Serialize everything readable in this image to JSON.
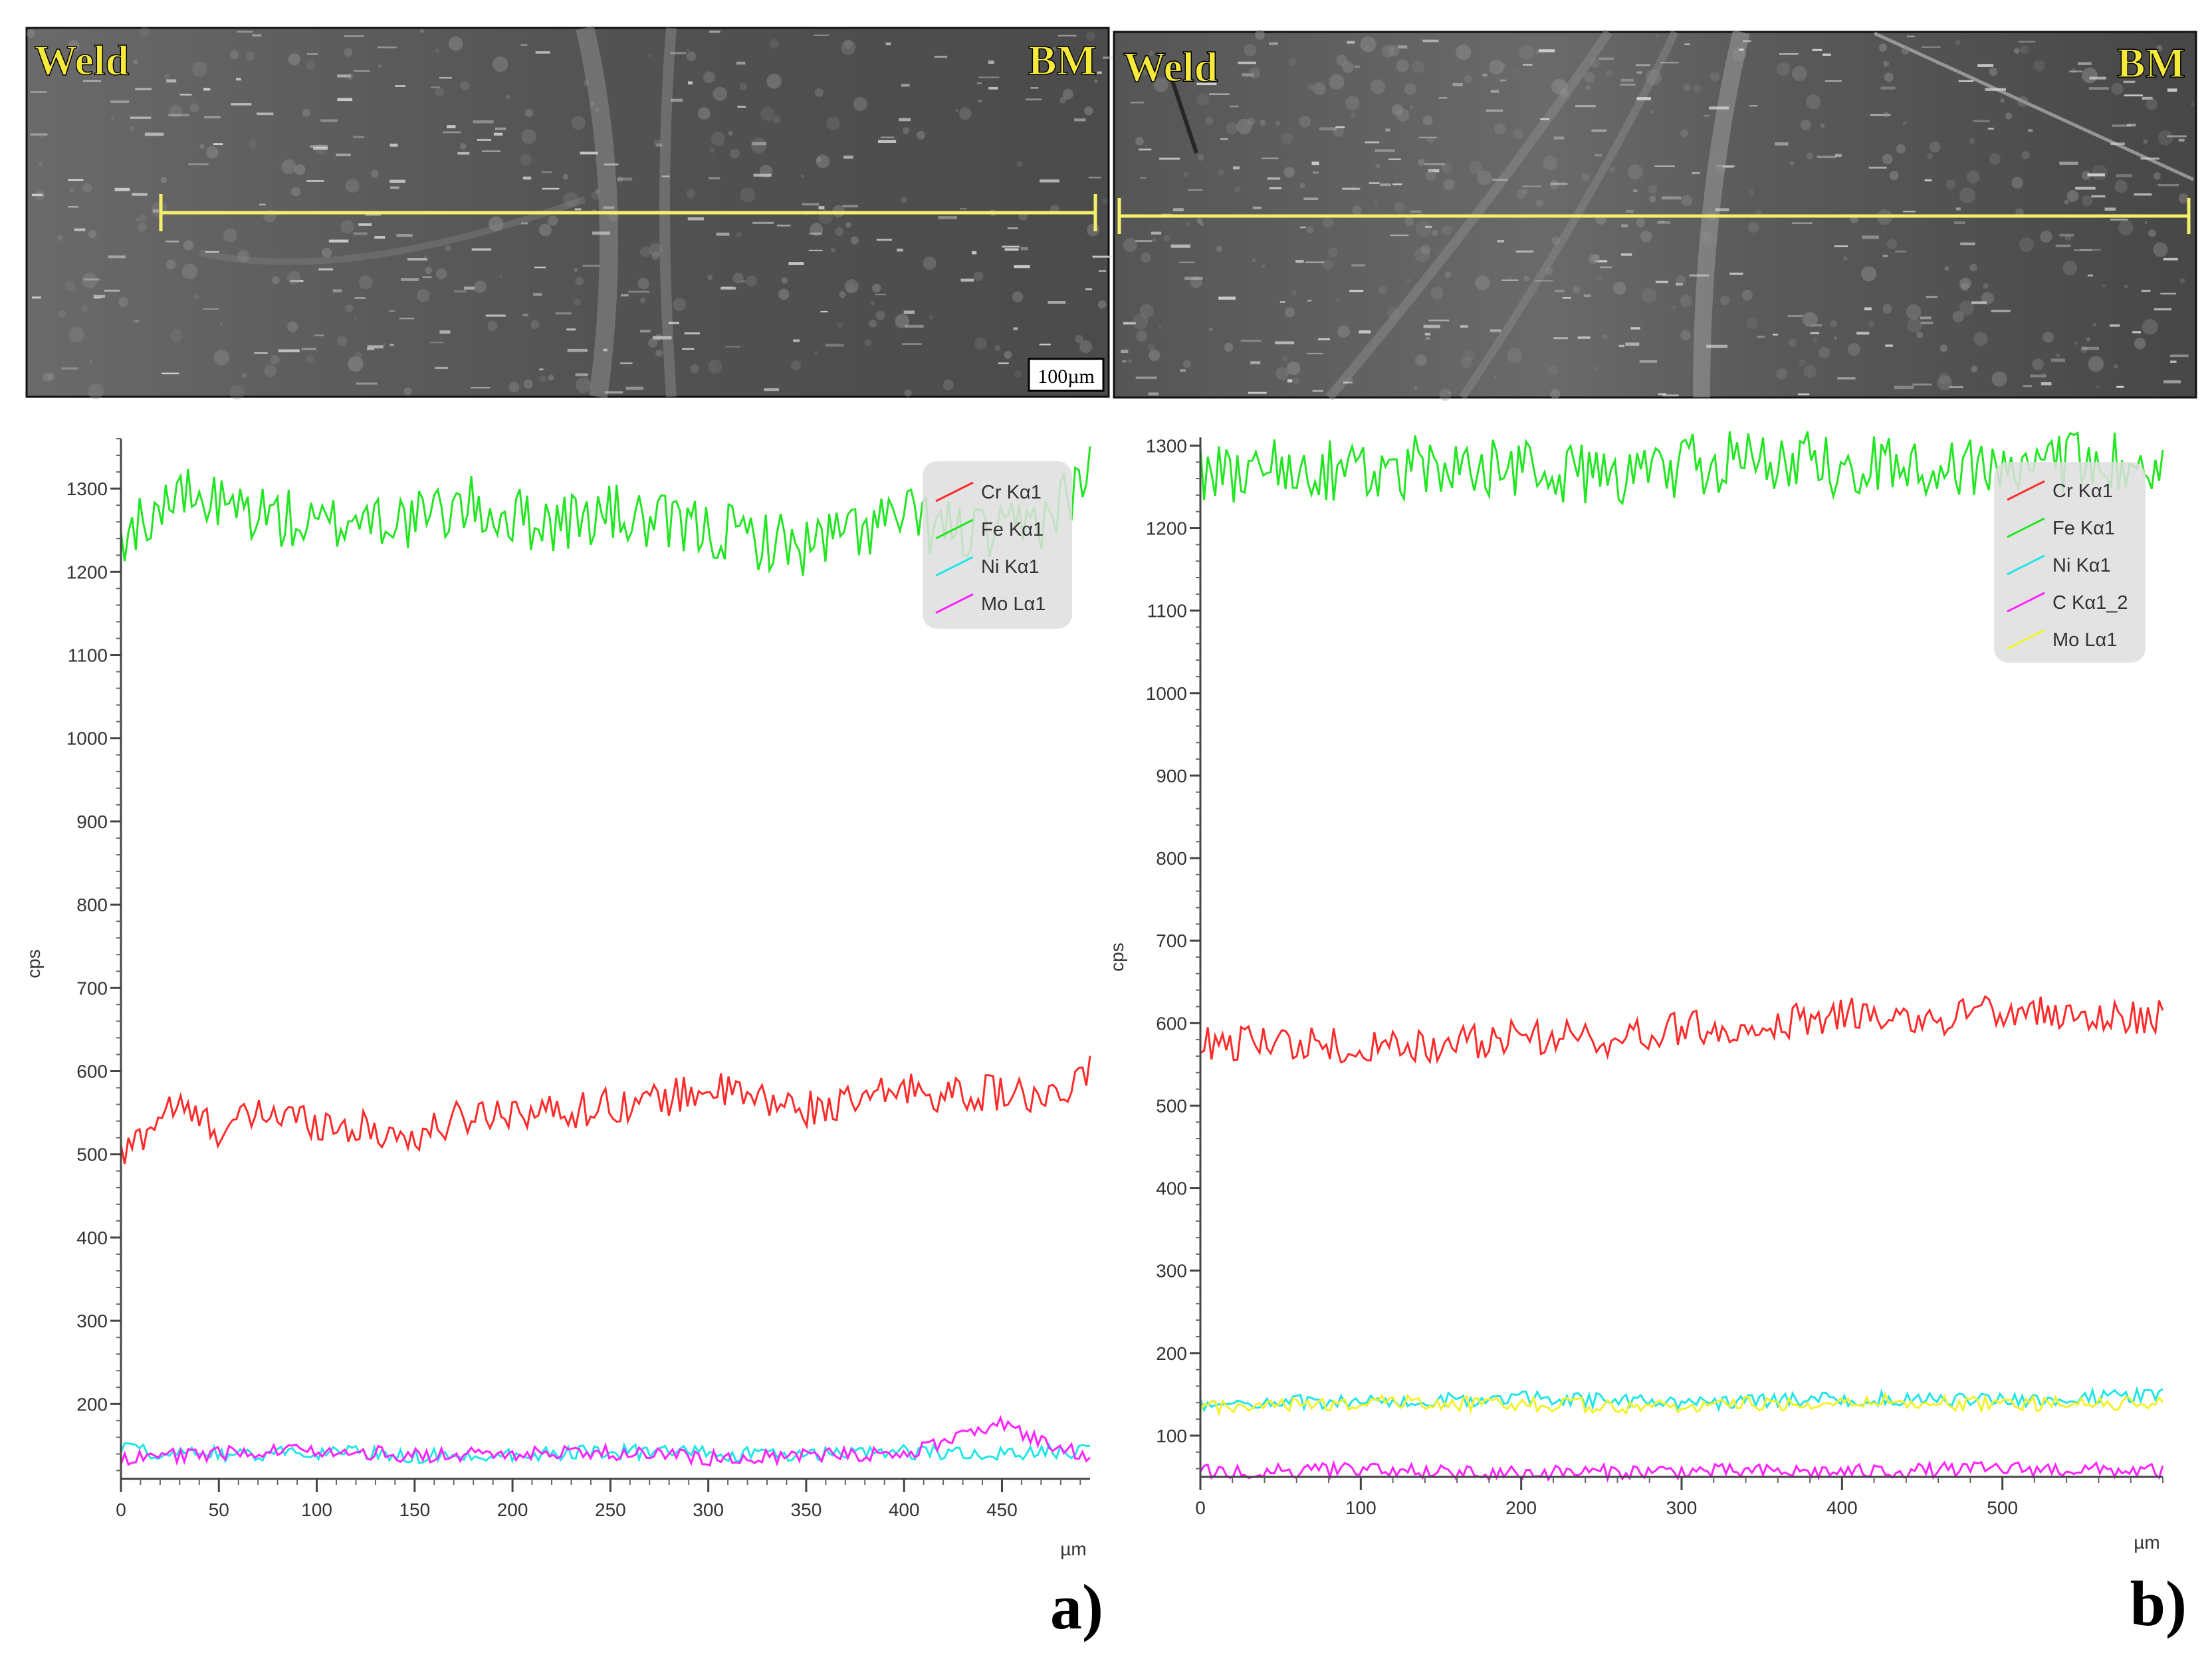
{
  "figure": {
    "panel_a": {
      "label": "a)",
      "micrograph": {
        "left_label": "Weld",
        "right_label": "BM",
        "scale_bar": "100µm"
      },
      "ylabel": "cps",
      "xunit": "µm",
      "legend": [
        "Cr Kα1",
        "Fe Kα1",
        "Ni Kα1",
        "Mo Lα1"
      ]
    },
    "panel_b": {
      "label": "b)",
      "micrograph": {
        "left_label": "Weld",
        "right_label": "BM"
      },
      "ylabel": "cps",
      "xunit": "µm",
      "legend": [
        "Cr Kα1",
        "Fe Kα1",
        "Ni Kα1",
        "C Kα1_2",
        "Mo Lα1"
      ]
    }
  },
  "colors": {
    "Cr": "#ff2a2a",
    "Fe": "#22e622",
    "Ni": "#22e5e5",
    "Mo_a": "#ff22ff",
    "C": "#ff22ff",
    "Mo_b": "#f2f22a",
    "line_scan": "#f5f06a",
    "micro_label": "#f5ea3a"
  },
  "chart_data": [
    {
      "type": "line",
      "xlabel": "µm",
      "ylabel": "cps",
      "xlim": [
        0,
        495
      ],
      "ylim": [
        110,
        1360
      ],
      "xticks": [
        0,
        50,
        100,
        150,
        200,
        250,
        300,
        350,
        400,
        450
      ],
      "yticks": [
        200,
        300,
        400,
        500,
        600,
        700,
        800,
        900,
        1000,
        1100,
        1200,
        1300
      ],
      "series": [
        {
          "name": "Cr Kα1",
          "color": "#ff2a2a",
          "x": [
            0,
            25,
            50,
            75,
            100,
            125,
            150,
            175,
            200,
            225,
            250,
            275,
            300,
            325,
            350,
            375,
            400,
            425,
            450,
            475,
            495
          ],
          "values": [
            495,
            560,
            530,
            550,
            540,
            530,
            520,
            545,
            555,
            550,
            560,
            565,
            580,
            565,
            555,
            560,
            580,
            570,
            575,
            560,
            600
          ]
        },
        {
          "name": "Fe Kα1",
          "color": "#22e622",
          "x": [
            0,
            25,
            50,
            75,
            100,
            125,
            150,
            175,
            200,
            225,
            250,
            275,
            300,
            325,
            350,
            375,
            400,
            425,
            450,
            475,
            495
          ],
          "values": [
            1240,
            1290,
            1280,
            1270,
            1250,
            1270,
            1260,
            1280,
            1265,
            1260,
            1270,
            1255,
            1250,
            1240,
            1230,
            1250,
            1265,
            1250,
            1240,
            1270,
            1320
          ]
        },
        {
          "name": "Ni Kα1",
          "color": "#22e5e5",
          "x": [
            0,
            50,
            100,
            150,
            200,
            250,
            300,
            350,
            400,
            450,
            495
          ],
          "values": [
            145,
            140,
            142,
            138,
            140,
            143,
            140,
            138,
            142,
            140,
            145
          ]
        },
        {
          "name": "Mo Lα1",
          "color": "#ff22ff",
          "x": [
            0,
            50,
            100,
            150,
            200,
            250,
            300,
            350,
            400,
            450,
            495
          ],
          "values": [
            135,
            140,
            145,
            138,
            140,
            142,
            135,
            138,
            140,
            175,
            135
          ]
        }
      ]
    },
    {
      "type": "line",
      "xlabel": "µm",
      "ylabel": "cps",
      "xlim": [
        0,
        600
      ],
      "ylim": [
        50,
        1310
      ],
      "xticks": [
        0,
        100,
        200,
        300,
        400,
        500
      ],
      "yticks": [
        100,
        200,
        300,
        400,
        500,
        600,
        700,
        800,
        900,
        1000,
        1100,
        1200,
        1300
      ],
      "series": [
        {
          "name": "Cr Kα1",
          "color": "#ff2a2a",
          "x": [
            0,
            50,
            100,
            150,
            200,
            250,
            300,
            350,
            400,
            450,
            500,
            550,
            600
          ],
          "values": [
            575,
            580,
            570,
            575,
            585,
            580,
            595,
            600,
            610,
            605,
            615,
            605,
            610
          ]
        },
        {
          "name": "Fe Kα1",
          "color": "#22e622",
          "x": [
            0,
            50,
            100,
            150,
            200,
            250,
            300,
            350,
            400,
            450,
            500,
            550,
            600
          ],
          "values": [
            1260,
            1275,
            1265,
            1280,
            1270,
            1265,
            1275,
            1285,
            1275,
            1280,
            1270,
            1280,
            1280
          ]
        },
        {
          "name": "Ni Kα1",
          "color": "#22e5e5",
          "x": [
            0,
            100,
            200,
            300,
            400,
            500,
            600
          ],
          "values": [
            140,
            142,
            145,
            140,
            145,
            142,
            150
          ]
        },
        {
          "name": "C Kα1_2",
          "color": "#ff22ff",
          "x": [
            0,
            100,
            200,
            300,
            400,
            500,
            600
          ],
          "values": [
            57,
            58,
            55,
            57,
            56,
            60,
            57
          ]
        },
        {
          "name": "Mo Lα1",
          "color": "#f2f22a",
          "x": [
            0,
            100,
            200,
            300,
            400,
            500,
            600
          ],
          "values": [
            135,
            140,
            138,
            135,
            142,
            138,
            140
          ]
        }
      ]
    }
  ]
}
